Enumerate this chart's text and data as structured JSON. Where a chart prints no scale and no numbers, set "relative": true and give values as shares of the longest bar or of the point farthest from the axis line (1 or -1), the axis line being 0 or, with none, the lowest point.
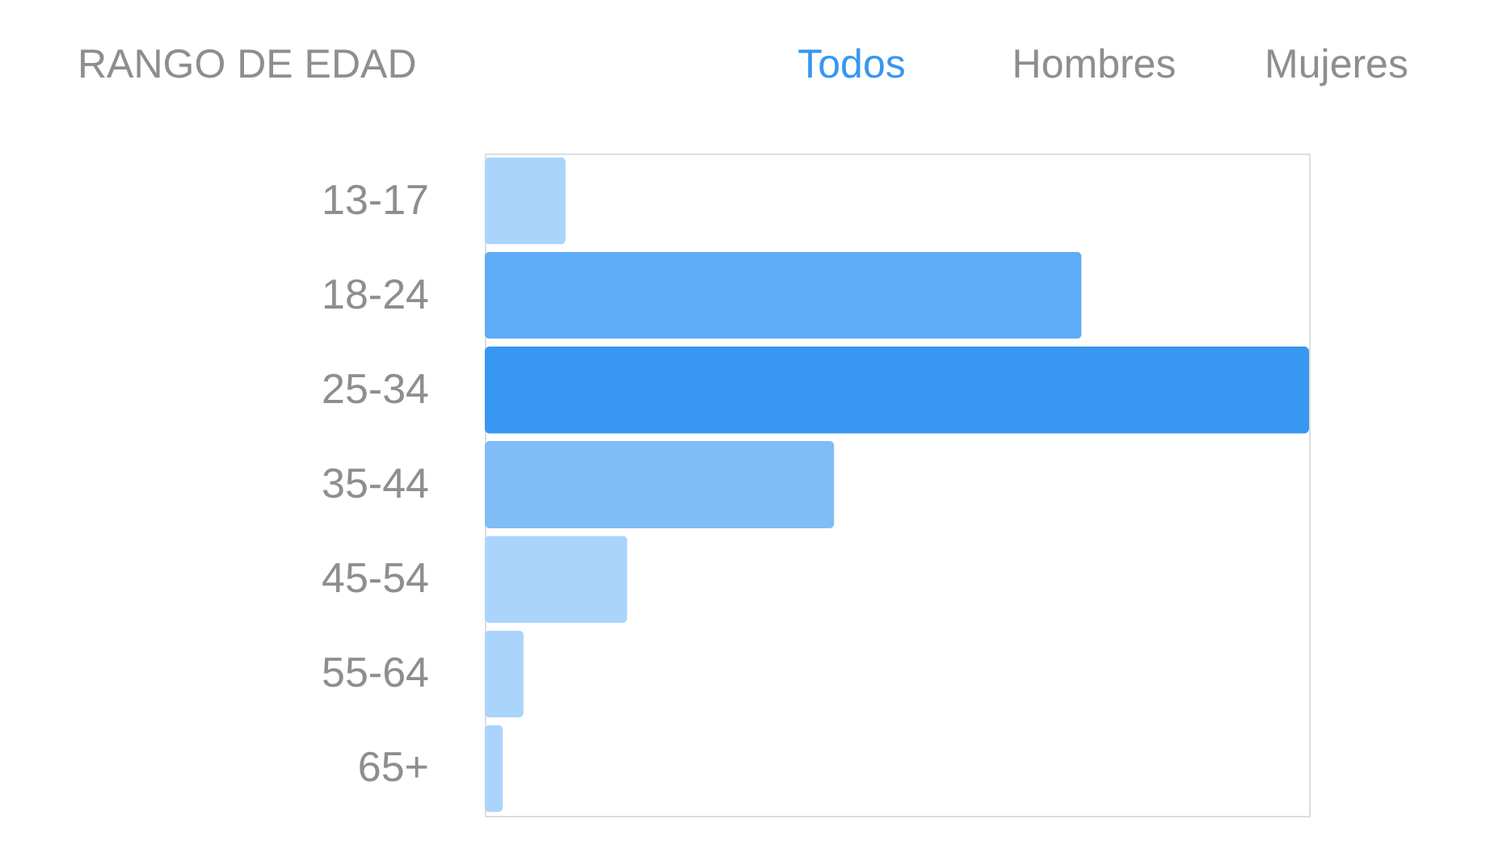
{
  "chart_data": {
    "type": "bar",
    "orientation": "horizontal",
    "relative": true,
    "title": "RANGO DE EDAD",
    "annotations": [
      "Todos",
      "Hombres",
      "Mujeres"
    ],
    "categories": [
      "13-17",
      "18-24",
      "25-34",
      "35-44",
      "45-54",
      "55-64",
      "65+"
    ],
    "values": [
      0.098,
      0.724,
      1,
      0.424,
      0.173,
      0.047,
      0.022
    ],
    "colors": [
      "#aad4fb",
      "#5eacf5",
      "#3897f0",
      "#80bcf6",
      "#aad4fb",
      "#aad4fb",
      "#aad4fb"
    ]
  }
}
